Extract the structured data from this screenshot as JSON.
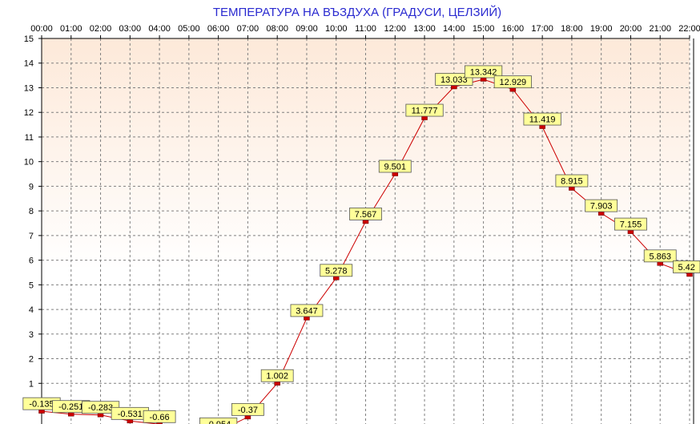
{
  "chart_data": {
    "type": "line",
    "title": "ТЕМПЕРАТУРА НА ВЪЗДУХА  (ГРАДУСИ, ЦЕЛЗИЙ)",
    "xlabel": "",
    "ylabel": "",
    "x": [
      "00:00",
      "01:00",
      "02:00",
      "03:00",
      "04:00",
      "05:00",
      "06:00",
      "07:00",
      "08:00",
      "09:00",
      "10:00",
      "11:00",
      "12:00",
      "13:00",
      "14:00",
      "15:00",
      "16:00",
      "17:00",
      "18:00",
      "19:00",
      "20:00",
      "21:00",
      "22:00"
    ],
    "y_ticks": [
      "1",
      "2",
      "3",
      "4",
      "5",
      "6",
      "7",
      "8",
      "9",
      "10",
      "11",
      "12",
      "13",
      "14",
      "15"
    ],
    "ylim": [
      0,
      15
    ],
    "grid": true,
    "series": [
      {
        "values": [
          -0.135,
          -0.251,
          -0.283,
          -0.531,
          -0.66,
          null,
          -0.954,
          -0.37,
          1.002,
          3.647,
          5.278,
          7.567,
          9.501,
          11.777,
          13.033,
          13.342,
          12.929,
          11.419,
          8.915,
          7.903,
          7.155,
          5.863,
          5.42
        ],
        "labels": [
          "-0.135",
          "-0.251",
          "-0.283",
          "-0.531",
          "-0.66",
          "",
          "-0.954",
          "-0.37",
          "1.002",
          "3.647",
          "5.278",
          "7.567",
          "9.501",
          "11.777",
          "13.033",
          "13.342",
          "12.929",
          "11.419",
          "8.915",
          "7.903",
          "7.155",
          "5.863",
          "5.42"
        ],
        "color": "#cc0000"
      }
    ],
    "colors": {
      "title": "#2a2ad0",
      "plot_bg_top": "#fde9d9",
      "plot_bg_bottom": "#ffffff",
      "label_bg": "#ffff99",
      "marker": "#cc0000",
      "line": "#cc0000",
      "grid": "#808080"
    }
  }
}
